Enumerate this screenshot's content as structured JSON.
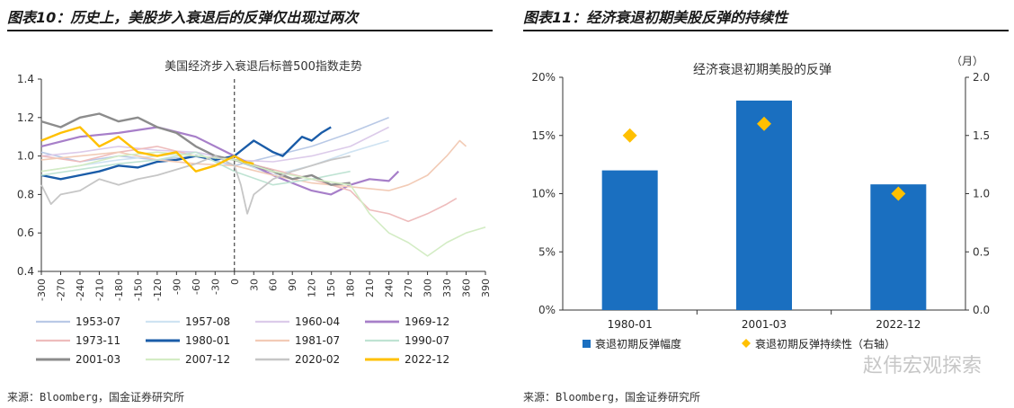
{
  "left": {
    "title": "图表10：历史上，美股步入衰退后的反弹仅出现过两次",
    "source": "来源：Bloomberg，国金证券研究所",
    "chart_data": {
      "type": "line",
      "title": "美国经济步入衰退后标普500指数走势",
      "xlabel": "",
      "ylabel": "",
      "xlim": [
        -300,
        390
      ],
      "ylim": [
        0.4,
        1.4
      ],
      "xticks": [
        -300,
        -270,
        -240,
        -210,
        -180,
        -150,
        -120,
        -90,
        -60,
        -30,
        0,
        30,
        60,
        90,
        120,
        150,
        180,
        210,
        240,
        270,
        300,
        330,
        360,
        390
      ],
      "yticks": [
        "0.4",
        "0.6",
        "0.8",
        "1.0",
        "1.2",
        "1.4"
      ],
      "vline_x": 0,
      "series": [
        {
          "name": "1953-07",
          "color": "#b9c9e6",
          "width": 1.6,
          "x": [
            -300,
            -240,
            -180,
            -120,
            -60,
            0,
            60,
            120,
            180,
            240
          ],
          "y": [
            1.02,
            0.97,
            1.0,
            0.98,
            1.0,
            0.95,
            1.0,
            1.05,
            1.12,
            1.2
          ]
        },
        {
          "name": "1957-08",
          "color": "#cfe3f2",
          "width": 1.6,
          "x": [
            -300,
            -240,
            -180,
            -120,
            -60,
            0,
            60,
            120,
            180,
            240
          ],
          "y": [
            0.92,
            0.95,
            0.98,
            1.0,
            1.02,
            0.98,
            0.9,
            0.95,
            1.02,
            1.08
          ]
        },
        {
          "name": "1960-04",
          "color": "#dccbea",
          "width": 1.6,
          "x": [
            -300,
            -240,
            -180,
            -120,
            -60,
            0,
            60,
            120,
            180,
            240
          ],
          "y": [
            1.0,
            1.02,
            1.05,
            1.03,
            1.02,
            0.98,
            0.97,
            1.0,
            1.05,
            1.15
          ]
        },
        {
          "name": "1969-12",
          "color": "#a77fc9",
          "width": 2.2,
          "x": [
            -300,
            -240,
            -180,
            -120,
            -60,
            0,
            30,
            60,
            90,
            120,
            150,
            180,
            210,
            240,
            255
          ],
          "y": [
            1.05,
            1.1,
            1.12,
            1.15,
            1.1,
            1.0,
            0.95,
            0.9,
            0.86,
            0.82,
            0.8,
            0.85,
            0.88,
            0.87,
            0.92
          ]
        },
        {
          "name": "1973-11",
          "color": "#eebcbc",
          "width": 1.6,
          "x": [
            -300,
            -240,
            -180,
            -120,
            -60,
            0,
            60,
            120,
            180,
            210,
            240,
            270,
            300,
            330,
            345
          ],
          "y": [
            1.0,
            0.97,
            1.02,
            1.05,
            1.0,
            0.98,
            0.93,
            0.88,
            0.82,
            0.72,
            0.7,
            0.66,
            0.7,
            0.75,
            0.78
          ]
        },
        {
          "name": "1980-01",
          "color": "#1a5ca8",
          "width": 2.4,
          "x": [
            -300,
            -270,
            -240,
            -210,
            -180,
            -150,
            -120,
            -90,
            -60,
            -30,
            0,
            15,
            30,
            45,
            60,
            75,
            90,
            105,
            120,
            135,
            150
          ],
          "y": [
            0.9,
            0.88,
            0.9,
            0.92,
            0.95,
            0.94,
            0.97,
            0.98,
            1.0,
            0.98,
            1.0,
            1.04,
            1.08,
            1.05,
            1.02,
            1.0,
            1.05,
            1.1,
            1.08,
            1.12,
            1.15
          ]
        },
        {
          "name": "1981-07",
          "color": "#f2cbb6",
          "width": 1.6,
          "x": [
            -300,
            -240,
            -180,
            -120,
            -60,
            0,
            60,
            120,
            180,
            240,
            270,
            300,
            330,
            350,
            360
          ],
          "y": [
            0.98,
            1.0,
            1.02,
            0.98,
            0.96,
            0.95,
            0.9,
            0.86,
            0.84,
            0.82,
            0.85,
            0.9,
            1.0,
            1.08,
            1.05
          ]
        },
        {
          "name": "1990-07",
          "color": "#bfe3d3",
          "width": 1.6,
          "x": [
            -300,
            -240,
            -180,
            -120,
            -60,
            0,
            60,
            120,
            180
          ],
          "y": [
            0.9,
            0.93,
            0.96,
            0.98,
            1.02,
            0.92,
            0.85,
            0.88,
            0.92
          ]
        },
        {
          "name": "2001-03",
          "color": "#8c8c8c",
          "width": 2.4,
          "x": [
            -300,
            -270,
            -240,
            -210,
            -180,
            -150,
            -120,
            -90,
            -60,
            -30,
            0,
            30,
            60,
            90,
            120,
            150,
            180
          ],
          "y": [
            1.18,
            1.15,
            1.2,
            1.22,
            1.18,
            1.2,
            1.15,
            1.12,
            1.05,
            1.0,
            0.98,
            0.95,
            0.92,
            0.88,
            0.9,
            0.85,
            0.86
          ]
        },
        {
          "name": "2007-12",
          "color": "#d3ecc4",
          "width": 1.6,
          "x": [
            -300,
            -240,
            -180,
            -120,
            -60,
            0,
            60,
            120,
            180,
            210,
            240,
            270,
            300,
            330,
            360,
            390
          ],
          "y": [
            0.92,
            0.95,
            1.0,
            1.02,
            1.0,
            0.98,
            0.92,
            0.88,
            0.85,
            0.7,
            0.6,
            0.55,
            0.48,
            0.55,
            0.6,
            0.63
          ]
        },
        {
          "name": "2020-02",
          "color": "#c6c6c6",
          "width": 1.8,
          "x": [
            -300,
            -285,
            -270,
            -240,
            -210,
            -180,
            -150,
            -120,
            -90,
            -60,
            -30,
            0,
            10,
            20,
            30,
            60,
            90,
            120,
            150,
            180
          ],
          "y": [
            0.85,
            0.75,
            0.8,
            0.82,
            0.88,
            0.85,
            0.88,
            0.9,
            0.93,
            0.96,
            1.0,
            0.95,
            0.85,
            0.7,
            0.8,
            0.88,
            0.92,
            0.95,
            0.98,
            1.0
          ]
        },
        {
          "name": "2022-12",
          "color": "#ffc000",
          "width": 2.4,
          "x": [
            -300,
            -270,
            -240,
            -210,
            -180,
            -150,
            -120,
            -90,
            -60,
            -30,
            0,
            15,
            30
          ],
          "y": [
            1.08,
            1.12,
            1.15,
            1.05,
            1.1,
            1.02,
            1.0,
            1.02,
            0.92,
            0.95,
            1.0,
            0.97,
            0.96
          ]
        }
      ]
    }
  },
  "right": {
    "title": "图表11：经济衰退初期美股反弹的持续性",
    "source": "来源：Bloomberg，国金证券研究所",
    "chart_data": {
      "type": "bar",
      "title": "经济衰退初期美股的反弹",
      "categories": [
        "1980-01",
        "2001-03",
        "2022-12"
      ],
      "xlabel": "",
      "ylabel": "",
      "ylim": [
        0,
        20
      ],
      "y2lim": [
        0,
        2.0
      ],
      "yticks": [
        "0%",
        "5%",
        "10%",
        "15%",
        "20%"
      ],
      "y2ticks": [
        "0.0",
        "0.5",
        "1.0",
        "1.5",
        "2.0"
      ],
      "y2unit": "（月）",
      "series": [
        {
          "name": "衰退初期反弹幅度",
          "type": "bar",
          "axis": "left",
          "color": "#1a6fc0",
          "values": [
            12.0,
            18.0,
            10.8
          ]
        },
        {
          "name": "衰退初期反弹持续性（右轴）",
          "type": "marker",
          "axis": "right",
          "color": "#ffc000",
          "values": [
            1.5,
            1.6,
            1.0
          ]
        }
      ]
    }
  },
  "watermark": "赵伟宏观探索"
}
